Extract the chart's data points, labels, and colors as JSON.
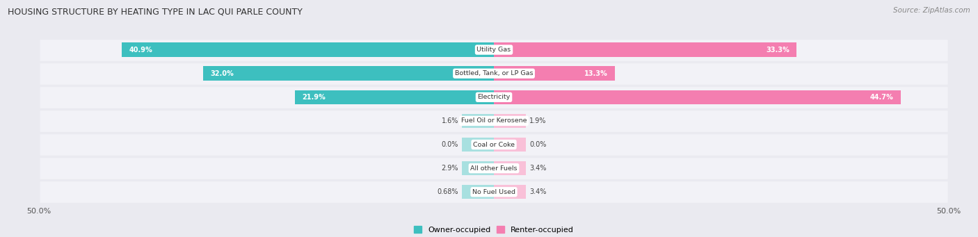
{
  "title": "HOUSING STRUCTURE BY HEATING TYPE IN LAC QUI PARLE COUNTY",
  "source": "Source: ZipAtlas.com",
  "categories": [
    "Utility Gas",
    "Bottled, Tank, or LP Gas",
    "Electricity",
    "Fuel Oil or Kerosene",
    "Coal or Coke",
    "All other Fuels",
    "No Fuel Used"
  ],
  "owner_values": [
    40.9,
    32.0,
    21.9,
    1.6,
    0.0,
    2.9,
    0.68
  ],
  "renter_values": [
    33.3,
    13.3,
    44.7,
    1.9,
    0.0,
    3.4,
    3.4
  ],
  "owner_label_vals": [
    "40.9%",
    "32.0%",
    "21.9%",
    "1.6%",
    "0.0%",
    "2.9%",
    "0.68%"
  ],
  "renter_label_vals": [
    "33.3%",
    "13.3%",
    "44.7%",
    "1.9%",
    "0.0%",
    "3.4%",
    "3.4%"
  ],
  "owner_color": "#3dbfbf",
  "renter_color": "#f47eb0",
  "owner_color_light": "#a8e0e0",
  "renter_color_light": "#f9c0d8",
  "owner_label": "Owner-occupied",
  "renter_label": "Renter-occupied",
  "axis_max": 50.0,
  "background_color": "#eaeaf0",
  "row_bg_color": "#f2f2f7",
  "separator_color": "#d8d8e8",
  "min_bar_width": 3.5,
  "large_threshold": 5.0
}
